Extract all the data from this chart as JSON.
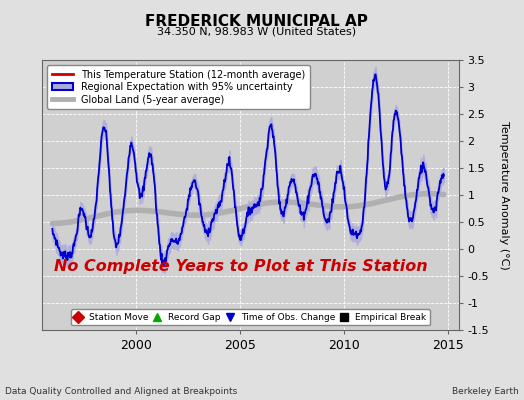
{
  "title": "FREDERICK MUNICIPAL AP",
  "subtitle": "34.350 N, 98.983 W (United States)",
  "ylabel": "Temperature Anomaly (°C)",
  "xlim": [
    1995.5,
    2015.5
  ],
  "ylim": [
    -1.5,
    3.5
  ],
  "yticks": [
    -1.5,
    -1.0,
    -0.5,
    0.0,
    0.5,
    1.0,
    1.5,
    2.0,
    2.5,
    3.0,
    3.5
  ],
  "xticks": [
    2000,
    2005,
    2010,
    2015
  ],
  "bg_color": "#e0e0e0",
  "plot_bg_color": "#d0d0d0",
  "grid_color": "#ffffff",
  "regional_color": "#0000cc",
  "regional_fill": "#aaaadd",
  "global_color": "#b0b0b0",
  "station_color": "#cc0000",
  "annotation_text": "No Complete Years to Plot at This Station",
  "annotation_color": "#cc0000",
  "footer_left": "Data Quality Controlled and Aligned at Breakpoints",
  "footer_right": "Berkeley Earth",
  "legend1_items": [
    {
      "label": "This Temperature Station (12-month average)",
      "color": "#cc0000",
      "lw": 2
    },
    {
      "label": "Regional Expectation with 95% uncertainty",
      "color": "#0000cc",
      "fill": "#aaaadd",
      "lw": 1.5
    },
    {
      "label": "Global Land (5-year average)",
      "color": "#b0b0b0",
      "lw": 3
    }
  ],
  "legend2_items": [
    {
      "label": "Station Move",
      "marker": "D",
      "color": "#cc0000"
    },
    {
      "label": "Record Gap",
      "marker": "^",
      "color": "#00aa00"
    },
    {
      "label": "Time of Obs. Change",
      "marker": "v",
      "color": "#0000cc"
    },
    {
      "label": "Empirical Break",
      "marker": "s",
      "color": "#000000"
    }
  ]
}
